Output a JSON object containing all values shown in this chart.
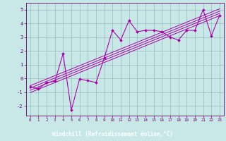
{
  "x_data": [
    0,
    1,
    2,
    3,
    4,
    5,
    6,
    7,
    8,
    9,
    10,
    11,
    12,
    13,
    14,
    15,
    16,
    17,
    18,
    19,
    20,
    21,
    22,
    23
  ],
  "y_data": [
    -0.6,
    -0.75,
    -0.3,
    -0.2,
    1.8,
    -2.3,
    -0.05,
    -0.15,
    -0.3,
    1.5,
    3.5,
    2.8,
    4.2,
    3.4,
    3.5,
    3.5,
    3.4,
    3.0,
    2.8,
    3.5,
    3.5,
    5.0,
    3.1,
    4.6
  ],
  "line_color": "#aa00aa",
  "marker_color": "#aa00aa",
  "bg_color": "#c8e8e8",
  "grid_color": "#99bbbb",
  "xlabel_bg": "#660066",
  "xlabel": "Windchill (Refroidissement éolien,°C)",
  "text_color": "#660066",
  "xlim": [
    -0.5,
    23.5
  ],
  "ylim": [
    -2.7,
    5.5
  ],
  "yticks": [
    -2,
    -1,
    0,
    1,
    2,
    3,
    4,
    5
  ],
  "xticks": [
    0,
    1,
    2,
    3,
    4,
    5,
    6,
    7,
    8,
    9,
    10,
    11,
    12,
    13,
    14,
    15,
    16,
    17,
    18,
    19,
    20,
    21,
    22,
    23
  ],
  "reg_offsets": [
    -0.25,
    -0.08,
    0.08,
    0.25
  ]
}
